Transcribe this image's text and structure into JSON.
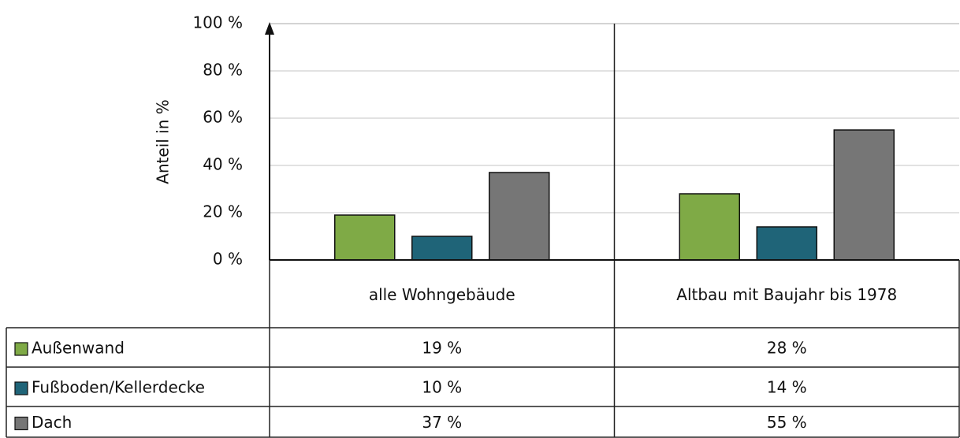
{
  "chart_data": {
    "type": "bar",
    "y_label": "Anteil in %",
    "categories": [
      "alle Wohngebäude",
      "Altbau mit Baujahr bis 1978"
    ],
    "series": [
      {
        "name": "Außenwand",
        "color": "#7faa46",
        "values": [
          19,
          28
        ],
        "value_labels": [
          "19 %",
          "28 %"
        ]
      },
      {
        "name": "Fußboden/Kellerdecke",
        "color": "#1f6478",
        "values": [
          10,
          14
        ],
        "value_labels": [
          "10 %",
          "14 %"
        ]
      },
      {
        "name": "Dach",
        "color": "#767676",
        "values": [
          37,
          55
        ],
        "value_labels": [
          "37 %",
          "55 %"
        ]
      }
    ],
    "ylim": [
      0,
      100
    ],
    "yticks": [
      {
        "value": 0,
        "label": "0 %"
      },
      {
        "value": 20,
        "label": "20 %"
      },
      {
        "value": 40,
        "label": "40 %"
      },
      {
        "value": 60,
        "label": "60 %"
      },
      {
        "value": 80,
        "label": "80 %"
      },
      {
        "value": 100,
        "label": "100 %"
      }
    ],
    "grid": true
  }
}
